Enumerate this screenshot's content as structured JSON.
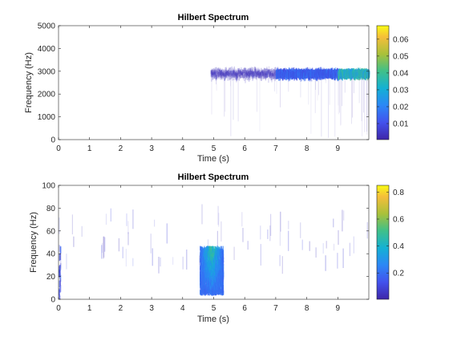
{
  "chart_data": [
    {
      "type": "heatmap",
      "title": "Hilbert Spectrum",
      "xlabel": "Time (s)",
      "ylabel": "Frequency (Hz)",
      "xlim": [
        0,
        10
      ],
      "ylim": [
        0,
        5000
      ],
      "xticks": [
        0,
        1,
        2,
        3,
        4,
        5,
        6,
        7,
        8,
        9
      ],
      "yticks": [
        0,
        1000,
        2000,
        3000,
        4000,
        5000
      ],
      "grid": false,
      "colormap": "parula",
      "colorbar": {
        "range": [
          0.0005,
          0.068
        ],
        "ticks": [
          0.01,
          0.02,
          0.03,
          0.04,
          0.05,
          0.06
        ]
      },
      "features": [
        {
          "description": "faint noise band",
          "t": [
            4.9,
            7.0
          ],
          "f_center": 2950,
          "f_spread": 260,
          "intensity": [
            0.001,
            0.006
          ]
        },
        {
          "description": "steady band",
          "t": [
            7.0,
            9.0
          ],
          "f_center": 2950,
          "f_spread": 200,
          "intensity": [
            0.006,
            0.02
          ]
        },
        {
          "description": "strong band",
          "t": [
            9.0,
            10.0
          ],
          "f_center": 2950,
          "f_spread": 170,
          "intensity": [
            0.02,
            0.045
          ]
        }
      ]
    },
    {
      "type": "heatmap",
      "title": "Hilbert Spectrum",
      "xlabel": "Time (s)",
      "ylabel": "Frequency (Hz)",
      "xlim": [
        0,
        10
      ],
      "ylim": [
        0,
        100
      ],
      "xticks": [
        0,
        1,
        2,
        3,
        4,
        5,
        6,
        7,
        8,
        9
      ],
      "yticks": [
        0,
        20,
        40,
        60,
        80,
        100
      ],
      "grid": false,
      "colormap": "parula",
      "colorbar": {
        "range": [
          0.005,
          0.85
        ],
        "ticks": [
          0.2,
          0.4,
          0.6,
          0.8
        ]
      },
      "features": [
        {
          "description": "scattered faint components",
          "t": [
            0,
            10
          ],
          "f": [
            30,
            75
          ],
          "intensity": [
            0.02,
            0.12
          ]
        },
        {
          "description": "burst at 5 s",
          "t": [
            4.55,
            5.3
          ],
          "f": [
            5,
            45
          ],
          "intensity": [
            0.1,
            0.6
          ]
        },
        {
          "description": "low-frequency edge at t=0",
          "t": [
            0,
            0.1
          ],
          "f": [
            0,
            45
          ],
          "intensity": [
            0.05,
            0.2
          ]
        }
      ]
    }
  ]
}
